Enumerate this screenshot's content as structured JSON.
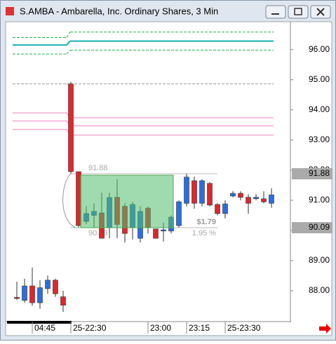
{
  "chart_data": {
    "type": "candlestick",
    "title": "S.AMBA - Ambarella, Inc. Ordinary Shares, 3 Min",
    "categories": [
      null,
      null,
      "04:45",
      null,
      null,
      null,
      null,
      "25-22:30",
      null,
      null,
      null,
      null,
      null,
      null,
      null,
      null,
      null,
      "23:00",
      null,
      null,
      null,
      null,
      "23:15",
      null,
      null,
      null,
      null,
      "25-23:30",
      null,
      null,
      null,
      null,
      null,
      null
    ],
    "open": [
      87.78,
      87.68,
      88.16,
      87.6,
      88.07,
      88.35,
      87.8,
      94.86,
      91.95,
      90.3,
      90.5,
      90.58,
      90.09,
      91.1,
      90.8,
      90.1,
      89.74,
      90.74,
      90.05,
      89.98,
      89.98,
      90.16,
      90.9,
      91.65,
      90.9,
      91.56,
      90.86,
      90.56,
      91.14,
      91.23,
      91.1,
      91.05,
      91.05,
      90.9
    ],
    "high": [
      88.3,
      88.4,
      88.77,
      88.35,
      88.5,
      88.4,
      88.0,
      94.93,
      91.95,
      90.8,
      90.9,
      91.25,
      91.25,
      91.7,
      90.9,
      90.95,
      90.8,
      90.8,
      90.05,
      90.26,
      90.5,
      91.0,
      91.88,
      91.79,
      91.7,
      91.6,
      90.9,
      91.0,
      91.3,
      91.3,
      91.2,
      91.2,
      91.3,
      91.4
    ],
    "low": [
      87.7,
      87.6,
      87.5,
      87.4,
      87.9,
      87.8,
      87.3,
      91.88,
      90.1,
      90.2,
      90.1,
      89.74,
      89.74,
      89.74,
      89.6,
      89.7,
      89.6,
      89.9,
      89.74,
      89.63,
      89.9,
      90.1,
      90.8,
      90.72,
      90.8,
      90.8,
      90.5,
      90.4,
      91.1,
      91.0,
      90.55,
      91.0,
      90.9,
      90.75
    ],
    "close": [
      87.74,
      88.16,
      87.6,
      88.1,
      88.35,
      87.9,
      87.52,
      91.95,
      90.16,
      90.56,
      90.63,
      89.74,
      91.09,
      90.2,
      89.9,
      90.86,
      90.63,
      90.09,
      89.74,
      90.02,
      90.44,
      90.95,
      91.77,
      90.9,
      91.65,
      90.84,
      90.56,
      90.88,
      91.23,
      91.1,
      90.9,
      91.1,
      90.95,
      91.18
    ],
    "up_color": "#2a6fe0",
    "down_color": "#e0262a",
    "ylim": [
      87.0,
      96.9
    ],
    "yticks": [
      {
        "value": 88,
        "label": "88.00"
      },
      {
        "value": 89,
        "label": "89.00"
      },
      {
        "value": 90,
        "label": "90.00"
      },
      {
        "value": 91,
        "label": "91.00"
      },
      {
        "value": 92,
        "label": "92.00"
      },
      {
        "value": 93,
        "label": "93.00"
      },
      {
        "value": 94,
        "label": "94.00"
      },
      {
        "value": 95,
        "label": "95.00"
      },
      {
        "value": 96,
        "label": "96.00"
      }
    ],
    "levels": [
      {
        "color": "#16b0b0",
        "dash": false,
        "before": 96.15,
        "after": 96.28
      },
      {
        "color": "#22b04a",
        "dash": true,
        "before": 96.4,
        "after": 96.58
      },
      {
        "color": "#22b04a",
        "dash": true,
        "before": 95.85,
        "after": 95.98
      },
      {
        "color": "#999999",
        "dash": true,
        "before": 94.86,
        "after": 94.86
      },
      {
        "color": "#f080c0",
        "dash": false,
        "before": 93.9,
        "after": 93.74
      },
      {
        "color": "#f080c0",
        "dash": false,
        "before": 93.63,
        "after": 93.47
      },
      {
        "color": "#f080c0",
        "dash": false,
        "before": 93.35,
        "after": 93.16
      }
    ],
    "measure": {
      "high": 91.88,
      "low": 90.09,
      "change": {
        "value": 1.79,
        "label": "$1.79"
      },
      "percent": {
        "value": 1.95,
        "label": "1.95 %"
      }
    }
  }
}
